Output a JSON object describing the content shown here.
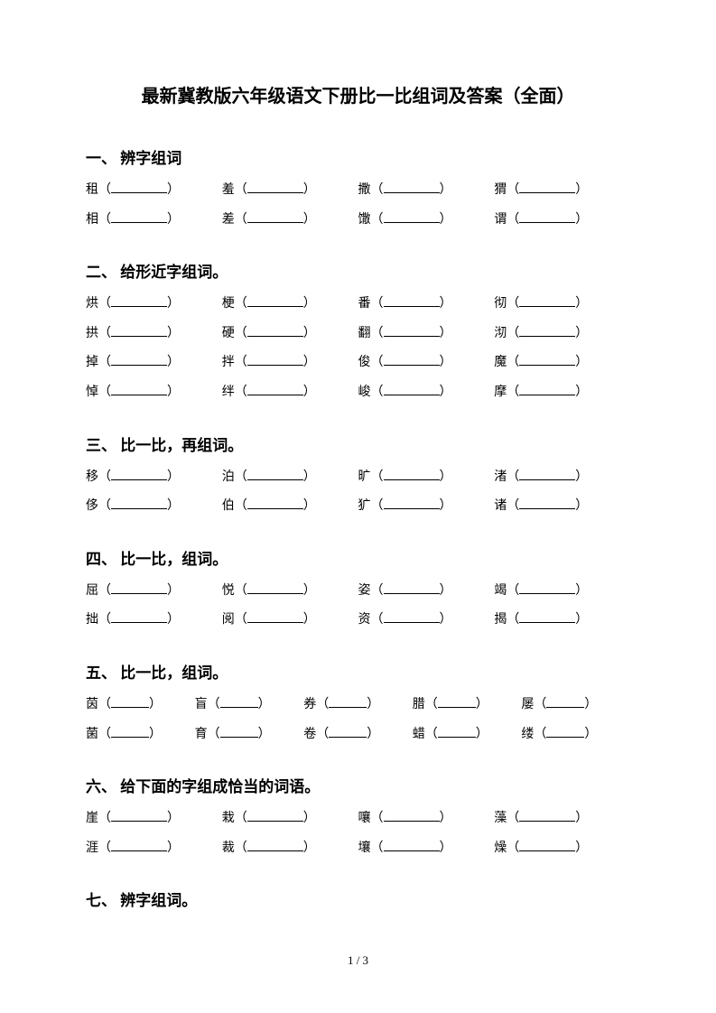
{
  "title": "最新冀教版六年级语文下册比一比组词及答案（全面）",
  "title_fontsize": "20px",
  "heading_fontsize": "17px",
  "body_fontsize": "14px",
  "small_fontsize": "13px",
  "blank_width_4": "62px",
  "blank_width_5": "42px",
  "sections": [
    {
      "heading": "一、 辨字组词",
      "cols": 4,
      "rows": [
        [
          "租",
          "羞",
          "撒",
          "猬"
        ],
        [
          "相",
          "差",
          "馓",
          "谓"
        ]
      ]
    },
    {
      "heading": "二、 给形近字组词。",
      "cols": 4,
      "rows": [
        [
          "烘",
          "梗",
          "番",
          "彻"
        ],
        [
          "拱",
          "硬",
          "翻",
          "沏"
        ],
        [
          "掉",
          "拌",
          "俊",
          "魔"
        ],
        [
          "悼",
          "绊",
          "峻",
          "摩"
        ]
      ]
    },
    {
      "heading": "三、 比一比，再组词。",
      "cols": 4,
      "rows": [
        [
          "移",
          "泊",
          "旷",
          "渚"
        ],
        [
          "侈",
          "伯",
          "犷",
          "诸"
        ]
      ]
    },
    {
      "heading": "四、 比一比，组词。",
      "cols": 4,
      "rows": [
        [
          "屈",
          "悦",
          "姿",
          "竭"
        ],
        [
          "拙",
          "阅",
          "资",
          "揭"
        ]
      ]
    },
    {
      "heading": "五、 比一比，组词。",
      "cols": 5,
      "rows": [
        [
          "茵",
          "盲",
          "券",
          "腊",
          "屡"
        ],
        [
          "菌",
          "育",
          "卷",
          "蜡",
          "缕"
        ]
      ]
    },
    {
      "heading": "六、 给下面的字组成恰当的词语。",
      "cols": 4,
      "rows": [
        [
          "崖",
          "栽",
          "嚷",
          "藻"
        ],
        [
          "涯",
          "裁",
          "壤",
          "燥"
        ]
      ]
    },
    {
      "heading": "七、 辨字组词。",
      "cols": 4,
      "rows": []
    }
  ],
  "pageNum": "1 / 3"
}
